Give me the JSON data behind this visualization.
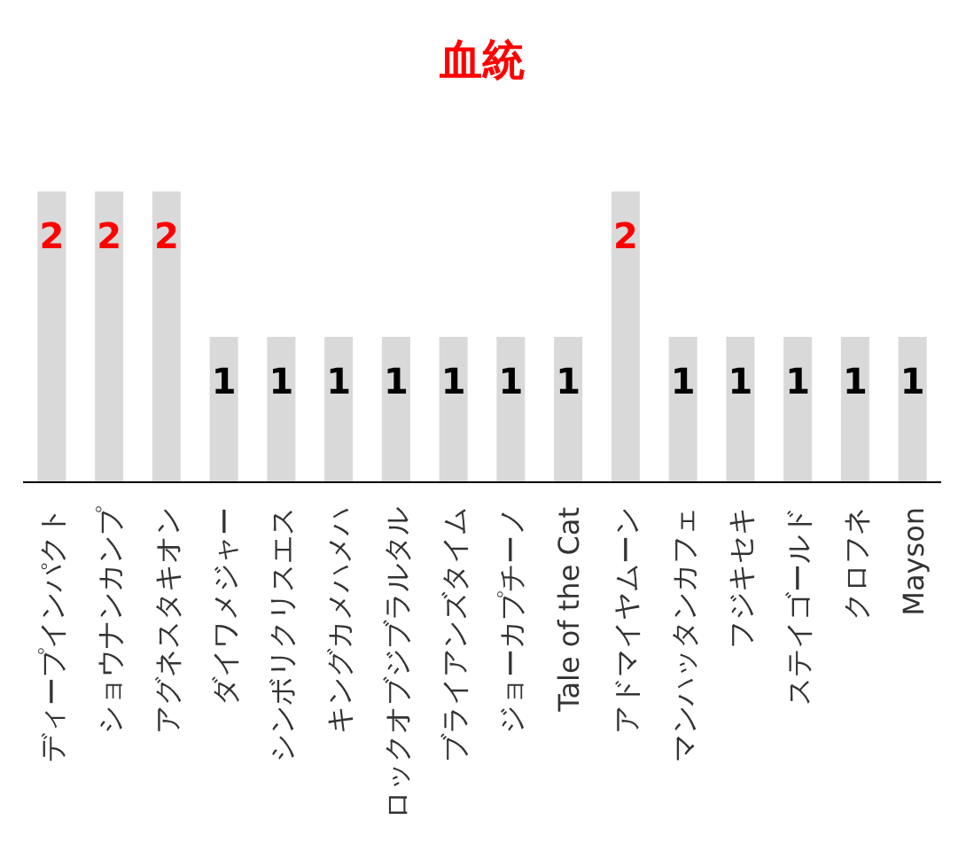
{
  "chart_data": {
    "type": "bar",
    "title": "血統",
    "categories": [
      "ディープインパクト",
      "ショウナンカンプ",
      "アグネスタキオン",
      "ダイワメジャー",
      "シンボリクリスエス",
      "キングカメハメハ",
      "ロックオブジブラルタル",
      "ブライアンズタイム",
      "ジョーカプチーノ",
      "Tale of the Cat",
      "アドマイヤムーン",
      "マンハッタンカフェ",
      "フジキセキ",
      "ステイゴールド",
      "クロフネ",
      "Mayson"
    ],
    "values": [
      2,
      2,
      2,
      1,
      1,
      1,
      1,
      1,
      1,
      1,
      2,
      1,
      1,
      1,
      1,
      1
    ],
    "color": "#d9d9d9",
    "data_labels": true
  }
}
